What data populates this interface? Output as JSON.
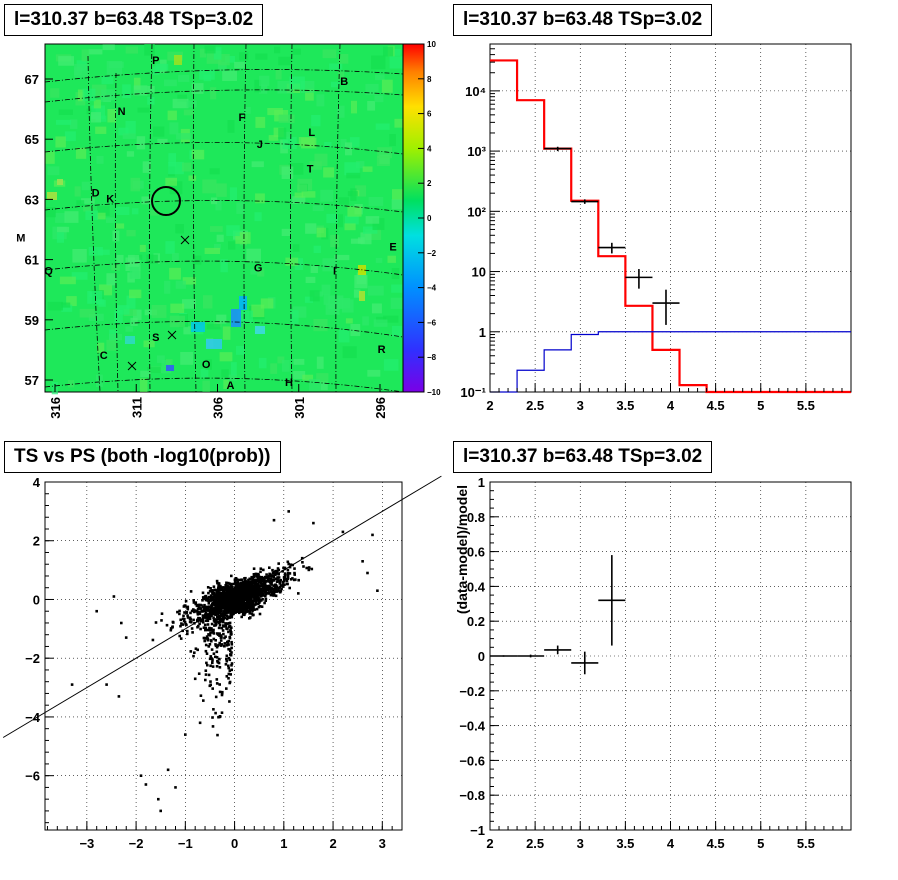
{
  "pads": {
    "top_left": {
      "title": "l=310.37 b=63.48 TSp=3.02"
    },
    "top_right": {
      "title": "l=310.37 b=63.48 TSp=3.02"
    },
    "bottom_left": {
      "title": "TS vs PS (both -log10(prob))"
    },
    "bottom_right": {
      "title": "l=310.37 b=63.48 TSp=3.02"
    }
  },
  "chart_data": [
    {
      "type": "heatmap",
      "title": "l=310.37 b=63.48 TSp=3.02",
      "x_ticks": [
        "316",
        "311",
        "306",
        "301",
        "296"
      ],
      "y_ticks": [
        "57",
        "59",
        "61",
        "63",
        "65",
        "67"
      ],
      "colorbar": {
        "min": -10,
        "max": 10,
        "ticks": [
          "10",
          "8",
          "6",
          "4",
          "2",
          "0",
          "−2",
          "−4",
          "−6",
          "−8",
          "−10"
        ]
      },
      "source_labels": [
        {
          "label": "P",
          "l": 309.8,
          "b": 67.5
        },
        {
          "label": "B",
          "l": 298.2,
          "b": 66.8
        },
        {
          "label": "N",
          "l": 311.9,
          "b": 65.8
        },
        {
          "label": "F",
          "l": 304.5,
          "b": 65.6
        },
        {
          "label": "L",
          "l": 300.2,
          "b": 65.1
        },
        {
          "label": "J",
          "l": 303.4,
          "b": 64.7
        },
        {
          "label": "T",
          "l": 300.3,
          "b": 63.9
        },
        {
          "label": "D",
          "l": 313.5,
          "b": 63.1
        },
        {
          "label": "K",
          "l": 312.6,
          "b": 62.9
        },
        {
          "label": "M",
          "l": 318.1,
          "b": 61.6
        },
        {
          "label": "Q",
          "l": 316.4,
          "b": 60.5
        },
        {
          "label": "G",
          "l": 303.5,
          "b": 60.6
        },
        {
          "label": "I",
          "l": 298.8,
          "b": 60.5
        },
        {
          "label": "E",
          "l": 295.2,
          "b": 61.3
        },
        {
          "label": "S",
          "l": 309.8,
          "b": 58.3
        },
        {
          "label": "C",
          "l": 313.0,
          "b": 57.7
        },
        {
          "label": "O",
          "l": 306.7,
          "b": 57.4
        },
        {
          "label": "R",
          "l": 295.9,
          "b": 57.9
        },
        {
          "label": "A",
          "l": 305.2,
          "b": 56.7
        },
        {
          "label": "H",
          "l": 301.6,
          "b": 56.8
        }
      ],
      "circle_center": {
        "l": 310.37,
        "b": 63.48
      }
    },
    {
      "type": "line",
      "title": "l=310.37 b=63.48 TSp=3.02",
      "x_ticks": [
        "2",
        "2.5",
        "3",
        "3.5",
        "4",
        "4.5",
        "5",
        "5.5"
      ],
      "y_ticks": [
        "10⁻¹",
        "1",
        "10",
        "10²",
        "10³",
        "10⁴"
      ],
      "xlim": [
        2,
        6
      ],
      "ylog": true,
      "ylim": [
        0.1,
        60000
      ],
      "series": [
        {
          "color": "#ff0000",
          "bins": [
            [
              2.0,
              2.3,
              32000
            ],
            [
              2.3,
              2.6,
              7000
            ],
            [
              2.6,
              2.9,
              1100
            ],
            [
              2.9,
              3.2,
              150
            ],
            [
              3.2,
              3.5,
              18
            ],
            [
              3.5,
              3.8,
              2.7
            ],
            [
              3.8,
              4.1,
              0.5
            ],
            [
              4.1,
              4.4,
              0.13
            ],
            [
              4.4,
              6.0,
              0.1
            ]
          ]
        },
        {
          "color": "#0000cc",
          "bins": [
            [
              2.0,
              2.3,
              0.1
            ],
            [
              2.3,
              2.6,
              0.23
            ],
            [
              2.6,
              2.9,
              0.5
            ],
            [
              2.9,
              3.2,
              0.9
            ],
            [
              3.2,
              6.0,
              1.0
            ]
          ]
        }
      ],
      "points": [
        {
          "x": 2.75,
          "y": 1100,
          "xerr": 0.15,
          "ylo": 1000,
          "yhi": 1180
        },
        {
          "x": 3.05,
          "y": 145,
          "xerr": 0.15,
          "ylo": 133,
          "yhi": 158
        },
        {
          "x": 3.35,
          "y": 25,
          "xerr": 0.15,
          "ylo": 20,
          "yhi": 30
        },
        {
          "x": 3.65,
          "y": 8,
          "xerr": 0.15,
          "ylo": 5.2,
          "yhi": 11
        },
        {
          "x": 3.95,
          "y": 3,
          "xerr": 0.15,
          "ylo": 1.3,
          "yhi": 5
        }
      ]
    },
    {
      "type": "scatter",
      "title": "TS vs PS (both -log10(prob))",
      "x_ticks": [
        "−3",
        "−2",
        "−1",
        "0",
        "1",
        "2",
        "3"
      ],
      "y_ticks": [
        "−6",
        "−4",
        "−2",
        "0",
        "2",
        "4"
      ],
      "xlim": [
        -3.85,
        3.4
      ],
      "ylim": [
        -7.85,
        4.0
      ],
      "diagonal_line": {
        "slope": 1.0,
        "intercept": 0.0
      }
    },
    {
      "type": "scatter",
      "title": "l=310.37 b=63.48 TSp=3.02",
      "ylabel": "(data-model)/model",
      "x_ticks": [
        "2",
        "2.5",
        "3",
        "3.5",
        "4",
        "4.5",
        "5",
        "5.5"
      ],
      "y_ticks": [
        "−1",
        "−0.8",
        "−0.6",
        "−0.4",
        "−0.2",
        "0",
        "0.2",
        "0.4",
        "0.6",
        "0.8",
        "1"
      ],
      "xlim": [
        2,
        6
      ],
      "ylim": [
        -1,
        1
      ],
      "points": [
        {
          "x": 2.15,
          "y": 0.0,
          "xerr": 0.15,
          "yerr": 0.004
        },
        {
          "x": 2.45,
          "y": 0.0,
          "xerr": 0.15,
          "yerr": 0.008
        },
        {
          "x": 2.75,
          "y": 0.035,
          "xerr": 0.15,
          "yerr": 0.025
        },
        {
          "x": 3.05,
          "y": -0.04,
          "xerr": 0.15,
          "yerr": 0.065
        },
        {
          "x": 3.35,
          "y": 0.32,
          "xerr": 0.15,
          "yerr": 0.26
        }
      ]
    }
  ]
}
